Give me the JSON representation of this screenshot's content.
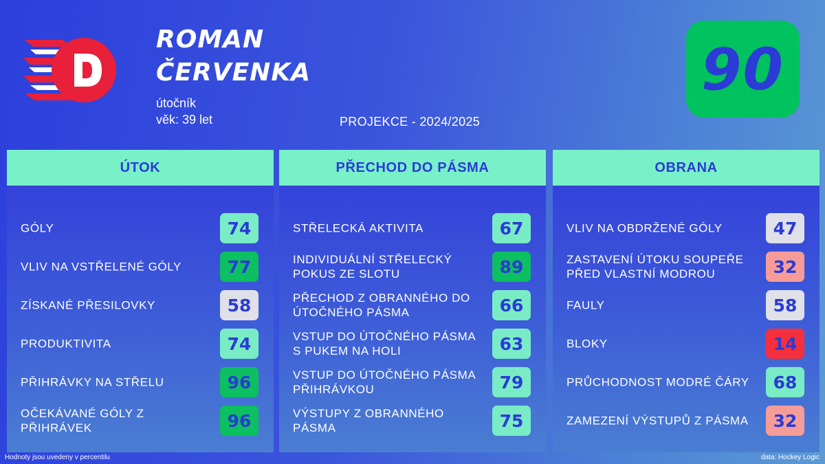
{
  "player": {
    "name_line1": "ROMAN",
    "name_line2": "ČERVENKA",
    "position": "útočník",
    "age": "věk: 39 let"
  },
  "projection": "PROJEKCE - 2024/2025",
  "overall": {
    "value": "90",
    "color": "#00c25e"
  },
  "logo": {
    "icon": "team-d-logo-icon",
    "letter": "D",
    "colors": [
      "#e8203a",
      "#ffffff"
    ]
  },
  "sections": [
    {
      "title": "ÚTOK",
      "items": [
        {
          "label": "GÓLY",
          "value": "74",
          "color": "lightgreen"
        },
        {
          "label": "VLIV NA VSTŘELENÉ GÓLY",
          "value": "77",
          "color": "green"
        },
        {
          "label": "ZÍSKANÉ PŘESILOVKY",
          "value": "58",
          "color": "grey"
        },
        {
          "label": "PRODUKTIVITA",
          "value": "74",
          "color": "lightgreen"
        },
        {
          "label": "PŘIHRÁVKY NA STŘELU",
          "value": "96",
          "color": "green"
        },
        {
          "label": "OČEKÁVANÉ GÓLY Z PŘIHRÁVEK",
          "value": "96",
          "color": "green"
        }
      ]
    },
    {
      "title": "PŘECHOD DO PÁSMA",
      "items": [
        {
          "label": "STŘELECKÁ AKTIVITA",
          "value": "67",
          "color": "lightgreen"
        },
        {
          "label": "INDIVIDUÁLNÍ STŘELECKÝ POKUS ZE SLOTU",
          "value": "89",
          "color": "green"
        },
        {
          "label": "PŘECHOD Z OBRANNÉHO DO ÚTOČNÉHO PÁSMA",
          "value": "66",
          "color": "lightgreen"
        },
        {
          "label": "VSTUP DO ÚTOČNÉHO PÁSMA S PUKEM NA HOLI",
          "value": "63",
          "color": "lightgreen"
        },
        {
          "label": "VSTUP DO ÚTOČNÉHO PÁSMA PŘIHRÁVKOU",
          "value": "79",
          "color": "lightgreen"
        },
        {
          "label": "VÝSTUPY Z OBRANNÉHO PÁSMA",
          "value": "75",
          "color": "lightgreen"
        }
      ]
    },
    {
      "title": "OBRANA",
      "items": [
        {
          "label": "VLIV NA OBDRŽENÉ GÓLY",
          "value": "47",
          "color": "grey"
        },
        {
          "label": "ZASTAVENÍ ÚTOKU SOUPEŘE PŘED VLASTNÍ MODROU",
          "value": "32",
          "color": "pink"
        },
        {
          "label": "FAULY",
          "value": "58",
          "color": "grey"
        },
        {
          "label": "BLOKY",
          "value": "14",
          "color": "red"
        },
        {
          "label": "PRŮCHODNOST MODRÉ ČÁRY",
          "value": "68",
          "color": "lightgreen"
        },
        {
          "label": "ZAMEZENÍ VÝSTUPŮ Z PÁSMA",
          "value": "32",
          "color": "pink"
        }
      ]
    }
  ],
  "footer": {
    "note": "Hodnoty jsou uvedeny v percentilu",
    "source": "data: Hockey Logic"
  }
}
